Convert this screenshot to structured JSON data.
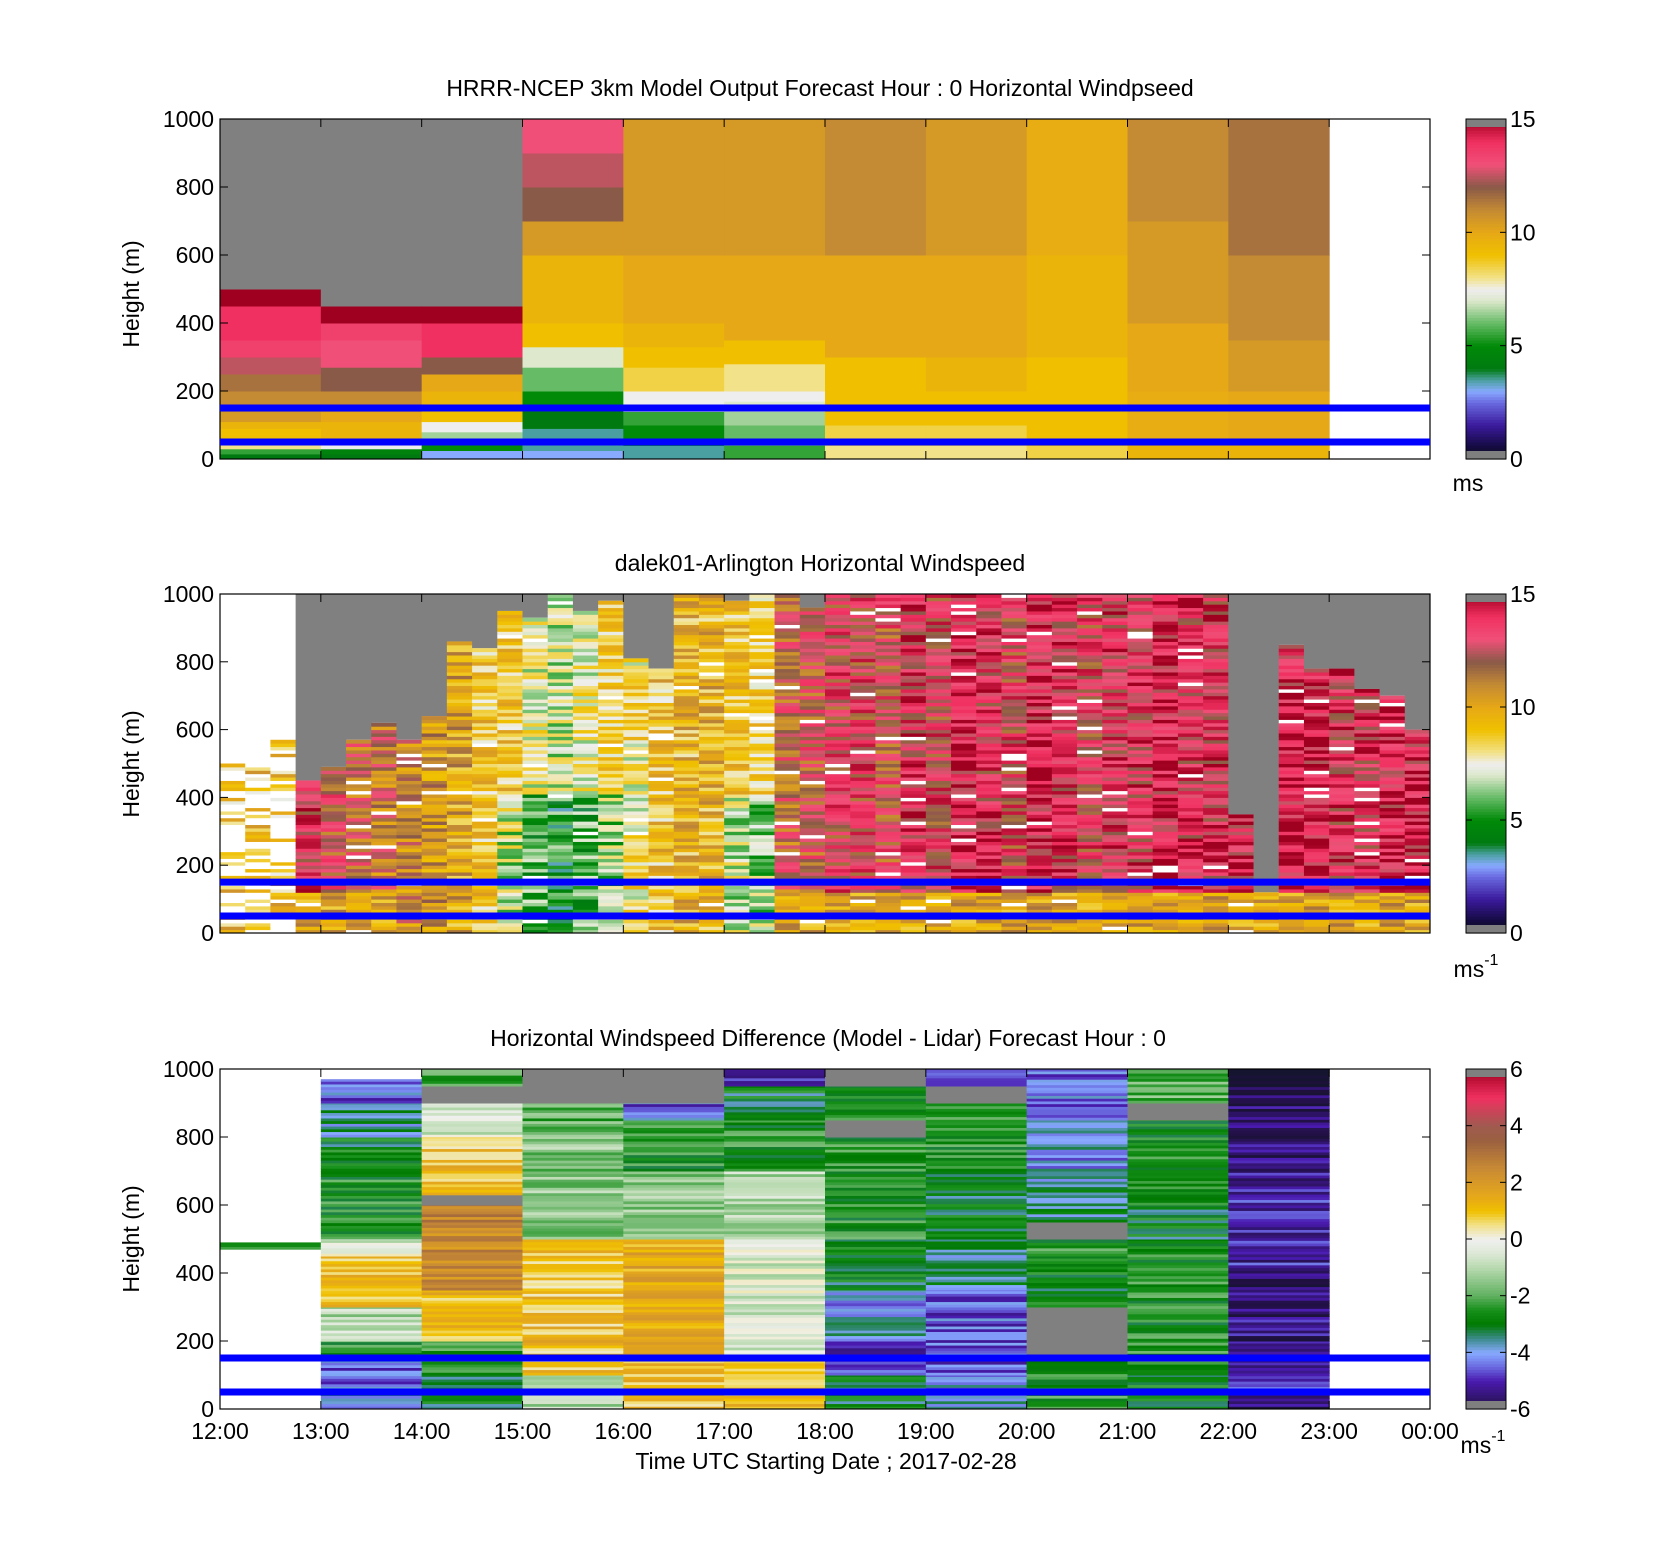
{
  "figure": {
    "xlabel": "Time UTC  Starting Date ; 2017-02-28",
    "x_ticks": [
      "12:00",
      "13:00",
      "14:00",
      "15:00",
      "16:00",
      "17:00",
      "18:00",
      "19:00",
      "20:00",
      "21:00",
      "22:00",
      "23:00",
      "00:00"
    ],
    "reference_lines_m": [
      50,
      150
    ],
    "reference_line_color": "#0000ff"
  },
  "chart_data": [
    {
      "type": "heatmap",
      "title": "HRRR-NCEP 3km Model Output   Forecast Hour : 0 Horizontal Windpseed",
      "ylabel": "Height (m)",
      "ylim": [
        0,
        1000
      ],
      "y_ticks": [
        "0",
        "200",
        "400",
        "600",
        "800",
        "1000"
      ],
      "x_range_hours": [
        12,
        24
      ],
      "colorbar": {
        "range": [
          0,
          15
        ],
        "ticks": [
          "0",
          "5",
          "10",
          "15"
        ],
        "unit": "ms",
        "unit_sup": ""
      },
      "columns": [
        {
          "t0": 12,
          "t1": 13,
          "segments": [
            [
              0,
              15,
              4
            ],
            [
              15,
              30,
              5.5
            ],
            [
              30,
              60,
              8
            ],
            [
              60,
              90,
              9
            ],
            [
              90,
              110,
              9.5
            ],
            [
              110,
              140,
              10.5
            ],
            [
              140,
              200,
              11
            ],
            [
              200,
              250,
              11.5
            ],
            [
              250,
              300,
              12.5
            ],
            [
              300,
              350,
              13.5
            ],
            [
              350,
              450,
              14
            ],
            [
              450,
              500,
              15
            ],
            [
              500,
              1000,
              null
            ]
          ]
        },
        {
          "t0": 13,
          "t1": 14,
          "segments": [
            [
              0,
              15,
              4
            ],
            [
              15,
              30,
              4.5
            ],
            [
              30,
              60,
              7.5
            ],
            [
              60,
              110,
              9.5
            ],
            [
              110,
              140,
              10
            ],
            [
              140,
              200,
              11
            ],
            [
              200,
              270,
              12
            ],
            [
              270,
              350,
              13
            ],
            [
              350,
              400,
              13.5
            ],
            [
              400,
              450,
              15
            ],
            [
              450,
              1000,
              null
            ]
          ]
        },
        {
          "t0": 14,
          "t1": 15,
          "segments": [
            [
              0,
              25,
              3
            ],
            [
              25,
              50,
              5
            ],
            [
              50,
              80,
              6.5
            ],
            [
              80,
              110,
              7.5
            ],
            [
              110,
              150,
              9
            ],
            [
              150,
              200,
              9.5
            ],
            [
              200,
              250,
              10
            ],
            [
              250,
              300,
              12
            ],
            [
              300,
              400,
              14
            ],
            [
              400,
              450,
              15
            ],
            [
              450,
              1000,
              null
            ]
          ]
        },
        {
          "t0": 15,
          "t1": 16,
          "segments": [
            [
              0,
              25,
              3
            ],
            [
              25,
              90,
              3.5
            ],
            [
              90,
              140,
              4
            ],
            [
              140,
              200,
              5
            ],
            [
              200,
              270,
              6
            ],
            [
              270,
              330,
              7
            ],
            [
              330,
              400,
              9
            ],
            [
              400,
              600,
              9.5
            ],
            [
              600,
              700,
              10.5
            ],
            [
              700,
              800,
              12
            ],
            [
              800,
              900,
              12.5
            ],
            [
              900,
              1000,
              13
            ]
          ]
        },
        {
          "t0": 16,
          "t1": 17,
          "segments": [
            [
              0,
              40,
              3.5
            ],
            [
              40,
              100,
              5
            ],
            [
              100,
              140,
              5.5
            ],
            [
              140,
              200,
              7.5
            ],
            [
              200,
              270,
              8.5
            ],
            [
              270,
              330,
              9
            ],
            [
              330,
              400,
              9.5
            ],
            [
              400,
              600,
              10
            ],
            [
              600,
              1000,
              10.5
            ]
          ]
        },
        {
          "t0": 17,
          "t1": 18,
          "segments": [
            [
              0,
              40,
              5.5
            ],
            [
              40,
              100,
              6
            ],
            [
              100,
              140,
              6.5
            ],
            [
              140,
              170,
              7
            ],
            [
              170,
              200,
              7.5
            ],
            [
              200,
              280,
              8
            ],
            [
              280,
              350,
              9
            ],
            [
              350,
              600,
              10
            ],
            [
              600,
              1000,
              10.5
            ]
          ]
        },
        {
          "t0": 18,
          "t1": 19,
          "segments": [
            [
              0,
              40,
              8
            ],
            [
              40,
              100,
              8.5
            ],
            [
              100,
              150,
              9
            ],
            [
              150,
              300,
              9
            ],
            [
              300,
              600,
              10
            ],
            [
              600,
              1000,
              11
            ]
          ]
        },
        {
          "t0": 19,
          "t1": 20,
          "segments": [
            [
              0,
              40,
              8
            ],
            [
              40,
              100,
              8.5
            ],
            [
              100,
              200,
              9
            ],
            [
              200,
              300,
              9.5
            ],
            [
              300,
              600,
              10
            ],
            [
              600,
              1000,
              10.5
            ]
          ]
        },
        {
          "t0": 20,
          "t1": 21,
          "segments": [
            [
              0,
              40,
              8.5
            ],
            [
              40,
              300,
              9
            ],
            [
              300,
              600,
              9.5
            ],
            [
              600,
              1000,
              9.8
            ]
          ]
        },
        {
          "t0": 21,
          "t1": 22,
          "segments": [
            [
              0,
              40,
              9.5
            ],
            [
              40,
              200,
              9.8
            ],
            [
              200,
              400,
              10
            ],
            [
              400,
              700,
              10.5
            ],
            [
              700,
              1000,
              11
            ]
          ]
        },
        {
          "t0": 22,
          "t1": 23,
          "segments": [
            [
              0,
              40,
              9.5
            ],
            [
              40,
              200,
              10
            ],
            [
              200,
              350,
              10.5
            ],
            [
              350,
              600,
              11
            ],
            [
              600,
              1000,
              11.5
            ]
          ]
        }
      ]
    },
    {
      "type": "heatmap",
      "title": "dalek01-Arlington  Horizontal Windspeed",
      "ylabel": "Height (m)",
      "ylim": [
        0,
        1000
      ],
      "y_ticks": [
        "0",
        "200",
        "400",
        "600",
        "800",
        "1000"
      ],
      "x_range_hours": [
        12,
        24
      ],
      "colorbar": {
        "range": [
          0,
          15
        ],
        "ticks": [
          "0",
          "5",
          "10",
          "15"
        ],
        "unit": "ms",
        "unit_sup": "-1"
      },
      "columns_from": 12,
      "column_width_hours": 0.25,
      "top_of_data_m": [
        500,
        500,
        570,
        450,
        490,
        570,
        620,
        570,
        640,
        860,
        840,
        950,
        930,
        1000,
        950,
        980,
        810,
        780,
        1000,
        1000,
        980,
        1000,
        1000,
        960,
        1000,
        1000,
        1000,
        1000,
        1000,
        1000,
        1000,
        1000,
        1000,
        1000,
        1000,
        1000,
        1000,
        1000,
        1000,
        1000,
        350,
        120,
        850,
        780,
        780,
        720,
        700,
        600
      ],
      "profile_mean_ms": [
        9,
        9,
        9,
        13.5,
        12.5,
        12,
        11.5,
        11,
        10.5,
        10,
        9,
        7,
        5.5,
        5,
        5.5,
        6.5,
        8,
        9,
        9.5,
        9.5,
        7,
        6.5,
        12,
        12.5,
        13,
        13,
        12.5,
        13.5,
        13,
        14,
        13.5,
        13,
        14,
        13.5,
        13,
        13.5,
        13.5,
        14,
        13.5,
        13.5,
        14,
        14.5,
        14,
        14,
        13.5,
        13.5,
        14,
        14
      ]
    },
    {
      "type": "heatmap",
      "title": "Horizontal Windspeed Difference (Model - Lidar) Forecast Hour : 0",
      "ylabel": "Height (m)",
      "ylim": [
        0,
        1000
      ],
      "y_ticks": [
        "0",
        "200",
        "400",
        "600",
        "800",
        "1000"
      ],
      "x_range_hours": [
        12,
        24
      ],
      "colorbar": {
        "range": [
          -6,
          6
        ],
        "ticks": [
          "-6",
          "-4",
          "-2",
          "0",
          "2",
          "4",
          "6"
        ],
        "unit": "ms",
        "unit_sup": "-1"
      },
      "columns": [
        {
          "t0": 12,
          "t1": 13,
          "segments": [
            [
              470,
              490,
              -2.5
            ]
          ]
        },
        {
          "t0": 13,
          "t1": 14,
          "segments": [
            [
              0,
              50,
              -4
            ],
            [
              50,
              150,
              -4.5
            ],
            [
              150,
              200,
              -2.5
            ],
            [
              200,
              300,
              -1
            ],
            [
              300,
              450,
              1
            ],
            [
              450,
              500,
              -0.5
            ],
            [
              500,
              700,
              -2.5
            ],
            [
              700,
              800,
              -3
            ],
            [
              800,
              900,
              -3.5
            ],
            [
              900,
              970,
              -4.5
            ]
          ]
        },
        {
          "t0": 14,
          "t1": 15,
          "segments": [
            [
              0,
              100,
              -3
            ],
            [
              100,
              200,
              -2.5
            ],
            [
              200,
              350,
              1
            ],
            [
              350,
              600,
              2.5
            ],
            [
              600,
              630,
              null
            ],
            [
              630,
              800,
              1
            ],
            [
              800,
              900,
              -0.5
            ],
            [
              900,
              950,
              null
            ],
            [
              950,
              1000,
              -2
            ]
          ]
        },
        {
          "t0": 15,
          "t1": 16,
          "segments": [
            [
              0,
              100,
              -1
            ],
            [
              100,
              500,
              1
            ],
            [
              500,
              800,
              -1.5
            ],
            [
              800,
              900,
              -2
            ],
            [
              900,
              1000,
              null
            ]
          ]
        },
        {
          "t0": 16,
          "t1": 17,
          "segments": [
            [
              0,
              150,
              1
            ],
            [
              150,
              500,
              1.5
            ],
            [
              500,
              700,
              -1.5
            ],
            [
              700,
              850,
              -2.5
            ],
            [
              850,
              900,
              -4.5
            ],
            [
              900,
              1000,
              null
            ]
          ]
        },
        {
          "t0": 17,
          "t1": 18,
          "segments": [
            [
              0,
              150,
              1
            ],
            [
              150,
              500,
              -0.5
            ],
            [
              500,
              700,
              -1
            ],
            [
              700,
              850,
              -2.5
            ],
            [
              850,
              950,
              -3
            ],
            [
              950,
              1000,
              -5
            ]
          ]
        },
        {
          "t0": 18,
          "t1": 19,
          "segments": [
            [
              0,
              100,
              -3
            ],
            [
              100,
              200,
              -5
            ],
            [
              200,
              350,
              -4
            ],
            [
              350,
              500,
              -3
            ],
            [
              500,
              800,
              -2.5
            ],
            [
              800,
              850,
              null
            ],
            [
              850,
              950,
              -2.5
            ],
            [
              950,
              1000,
              null
            ]
          ]
        },
        {
          "t0": 19,
          "t1": 20,
          "segments": [
            [
              0,
              100,
              -4
            ],
            [
              100,
              350,
              -4.5
            ],
            [
              350,
              500,
              -3.5
            ],
            [
              500,
              700,
              -3
            ],
            [
              700,
              900,
              -2.5
            ],
            [
              900,
              950,
              null
            ],
            [
              950,
              1000,
              -5
            ]
          ]
        },
        {
          "t0": 20,
          "t1": 21,
          "segments": [
            [
              0,
              150,
              -2.5
            ],
            [
              150,
              300,
              null
            ],
            [
              300,
              450,
              -3
            ],
            [
              450,
              500,
              -2.5
            ],
            [
              500,
              550,
              null
            ],
            [
              550,
              700,
              -3.5
            ],
            [
              700,
              850,
              -4
            ],
            [
              850,
              1000,
              -4.5
            ]
          ]
        },
        {
          "t0": 21,
          "t1": 22,
          "segments": [
            [
              0,
              100,
              -3
            ],
            [
              100,
              200,
              -2.5
            ],
            [
              200,
              500,
              -2.5
            ],
            [
              500,
              600,
              -3
            ],
            [
              600,
              800,
              -2.5
            ],
            [
              800,
              850,
              -3
            ],
            [
              850,
              900,
              null
            ],
            [
              900,
              1000,
              -2
            ]
          ]
        },
        {
          "t0": 22,
          "t1": 23,
          "segments": [
            [
              0,
              50,
              -5.5
            ],
            [
              50,
              200,
              -5
            ],
            [
              200,
              400,
              -5.5
            ],
            [
              400,
              700,
              -5
            ],
            [
              700,
              900,
              -5.5
            ],
            [
              900,
              950,
              -6
            ],
            [
              950,
              1000,
              -6.5
            ]
          ]
        }
      ]
    }
  ]
}
